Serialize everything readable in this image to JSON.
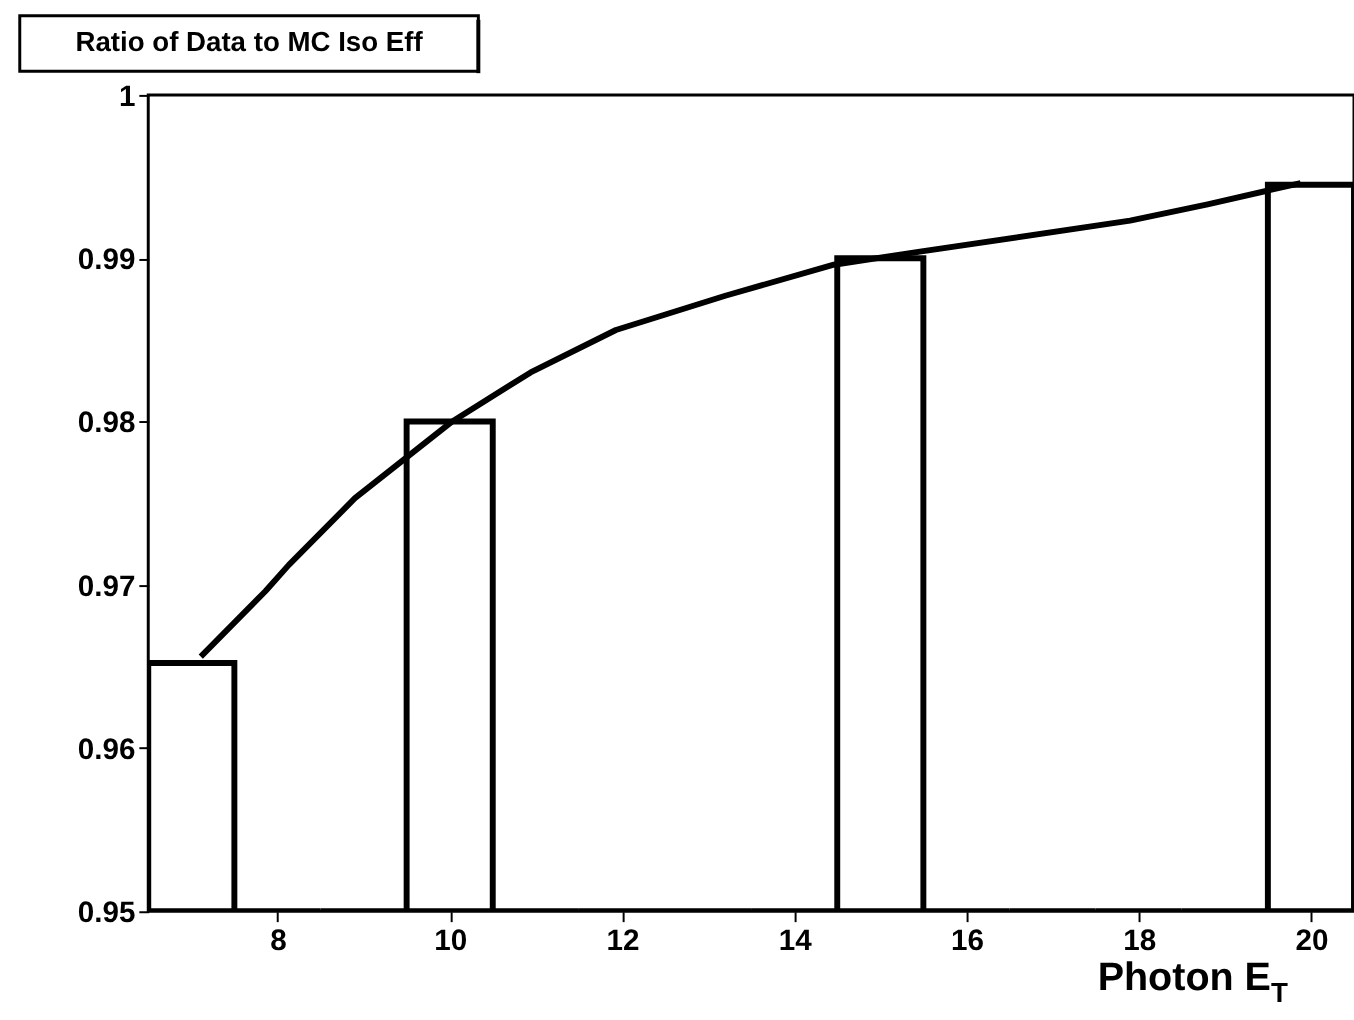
{
  "chart_data": {
    "type": "histogram",
    "title": "Ratio of Data to MC Iso Eff",
    "xlabel": "Photon E$_{T}$",
    "bins": [
      6.5,
      7.5,
      8.5,
      9.5,
      10.5,
      11.5,
      12.5,
      13.5,
      14.5,
      15.5,
      16.5,
      17.5,
      18.5,
      19.5,
      20.5
    ],
    "values": [
      0.9652,
      0.95,
      0.95,
      0.98,
      0.95,
      0.95,
      0.95,
      0.95,
      0.99,
      0.95,
      0.95,
      0.95,
      0.95,
      0.9945
    ],
    "color": "#000000",
    "series": [
      {
        "type": "line",
        "color": "#000000",
        "x": [
          7.11,
          7.86,
          8.13,
          8.9,
          10.03,
          10.94,
          11.93,
          13.2,
          14.46,
          15.46,
          17.9,
          18.8,
          19.88
        ],
        "values": [
          0.9656,
          0.9696,
          0.9712,
          0.9753,
          0.98,
          0.983,
          0.9856,
          0.9877,
          0.9896,
          0.9904,
          0.9923,
          0.9933,
          0.9946
        ]
      }
    ],
    "xlim": [
      6.5,
      20.5
    ],
    "xticks": [
      8,
      10,
      12,
      14,
      16,
      18,
      20
    ],
    "ylim": [
      0.95,
      1
    ],
    "yticks": [
      0.95,
      0.96,
      0.97,
      0.98,
      0.99,
      1
    ],
    "marker": "none"
  }
}
